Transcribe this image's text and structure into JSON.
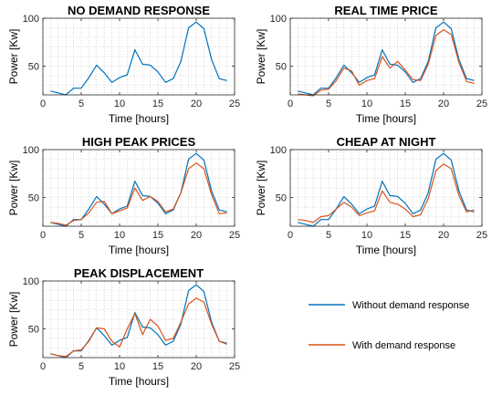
{
  "chart_data": [
    {
      "type": "line",
      "title": "NO DEMAND RESPONSE",
      "xlabel": "Time [hours]",
      "ylabel": "Power [Kw]",
      "xlim": [
        0,
        25
      ],
      "ylim": [
        20,
        100
      ],
      "xticks": [
        0,
        5,
        10,
        15,
        20,
        25
      ],
      "yticks": [
        50,
        100
      ],
      "grid": "dotted",
      "x": [
        1,
        2,
        3,
        4,
        5,
        6,
        7,
        8,
        9,
        10,
        11,
        12,
        13,
        14,
        15,
        16,
        17,
        18,
        19,
        20,
        21,
        22,
        23,
        24
      ],
      "series": [
        {
          "legend": "Without demand response",
          "values": [
            24,
            22,
            20,
            27,
            27,
            38,
            51,
            43,
            33,
            38,
            41,
            67,
            52,
            51,
            44,
            33,
            37,
            55,
            90,
            96,
            89,
            57,
            37,
            35
          ]
        }
      ]
    },
    {
      "type": "line",
      "title": "REAL TIME PRICE",
      "xlabel": "Time [hours]",
      "ylabel": "Power [Kw]",
      "xlim": [
        0,
        25
      ],
      "ylim": [
        20,
        100
      ],
      "xticks": [
        0,
        5,
        10,
        15,
        20,
        25
      ],
      "yticks": [
        50,
        100
      ],
      "grid": "dotted",
      "x": [
        1,
        2,
        3,
        4,
        5,
        6,
        7,
        8,
        9,
        10,
        11,
        12,
        13,
        14,
        15,
        16,
        17,
        18,
        19,
        20,
        21,
        22,
        23,
        24
      ],
      "series": [
        {
          "legend": "Without demand response",
          "values": [
            24,
            22,
            20,
            27,
            27,
            38,
            51,
            43,
            33,
            38,
            41,
            67,
            52,
            51,
            44,
            33,
            37,
            55,
            90,
            96,
            89,
            57,
            37,
            35
          ]
        },
        {
          "legend": "With demand response",
          "values": [
            21,
            20,
            19,
            25,
            26,
            35,
            48,
            45,
            30,
            35,
            37,
            60,
            48,
            55,
            46,
            36,
            35,
            52,
            82,
            88,
            83,
            54,
            34,
            32
          ]
        }
      ]
    },
    {
      "type": "line",
      "title": "HIGH PEAK PRICES",
      "xlabel": "Time [hours]",
      "ylabel": "Power [Kw]",
      "xlim": [
        0,
        25
      ],
      "ylim": [
        20,
        100
      ],
      "xticks": [
        0,
        5,
        10,
        15,
        20,
        25
      ],
      "yticks": [
        50,
        100
      ],
      "grid": "dotted",
      "x": [
        1,
        2,
        3,
        4,
        5,
        6,
        7,
        8,
        9,
        10,
        11,
        12,
        13,
        14,
        15,
        16,
        17,
        18,
        19,
        20,
        21,
        22,
        23,
        24
      ],
      "series": [
        {
          "legend": "Without demand response",
          "values": [
            24,
            22,
            20,
            27,
            27,
            38,
            51,
            43,
            33,
            38,
            41,
            67,
            52,
            51,
            44,
            33,
            37,
            55,
            90,
            96,
            89,
            57,
            37,
            35
          ]
        },
        {
          "legend": "With demand response",
          "values": [
            24,
            23,
            21,
            26,
            27,
            34,
            45,
            46,
            33,
            36,
            39,
            60,
            47,
            51,
            46,
            35,
            38,
            55,
            80,
            86,
            80,
            53,
            33,
            34
          ]
        }
      ]
    },
    {
      "type": "line",
      "title": "CHEAP AT NIGHT",
      "xlabel": "Time [hours]",
      "ylabel": "Power [Kw]",
      "xlim": [
        0,
        25
      ],
      "ylim": [
        20,
        100
      ],
      "xticks": [
        0,
        5,
        10,
        15,
        20,
        25
      ],
      "yticks": [
        50,
        100
      ],
      "grid": "dotted",
      "x": [
        1,
        2,
        3,
        4,
        5,
        6,
        7,
        8,
        9,
        10,
        11,
        12,
        13,
        14,
        15,
        16,
        17,
        18,
        19,
        20,
        21,
        22,
        23,
        24
      ],
      "series": [
        {
          "legend": "Without demand response",
          "values": [
            24,
            22,
            20,
            27,
            27,
            38,
            51,
            43,
            33,
            38,
            41,
            67,
            52,
            51,
            44,
            33,
            37,
            55,
            90,
            96,
            89,
            57,
            37,
            35
          ]
        },
        {
          "legend": "With demand response",
          "values": [
            27,
            26,
            24,
            30,
            31,
            38,
            45,
            40,
            31,
            34,
            36,
            57,
            45,
            43,
            38,
            30,
            32,
            49,
            78,
            85,
            80,
            52,
            35,
            37
          ]
        }
      ]
    },
    {
      "type": "line",
      "title": "PEAK DISPLACEMENT",
      "xlabel": "Time [hours]",
      "ylabel": "Power [Kw]",
      "xlim": [
        0,
        25
      ],
      "ylim": [
        20,
        100
      ],
      "xticks": [
        0,
        5,
        10,
        15,
        20,
        25
      ],
      "yticks": [
        50,
        100
      ],
      "grid": "dotted",
      "x": [
        1,
        2,
        3,
        4,
        5,
        6,
        7,
        8,
        9,
        10,
        11,
        12,
        13,
        14,
        15,
        16,
        17,
        18,
        19,
        20,
        21,
        22,
        23,
        24
      ],
      "series": [
        {
          "legend": "Without demand response",
          "values": [
            24,
            22,
            20,
            27,
            27,
            38,
            51,
            43,
            33,
            38,
            41,
            67,
            52,
            51,
            44,
            33,
            37,
            55,
            90,
            96,
            89,
            57,
            37,
            35
          ]
        },
        {
          "legend": "With demand response",
          "values": [
            24,
            22,
            21,
            27,
            28,
            37,
            51,
            50,
            37,
            31,
            50,
            66,
            44,
            60,
            53,
            38,
            40,
            57,
            76,
            82,
            78,
            55,
            37,
            34
          ]
        }
      ]
    }
  ],
  "legend": {
    "placement": "bottom-right",
    "items": [
      {
        "label": "Without demand response",
        "color": "#0072BD"
      },
      {
        "label": "With demand response",
        "color": "#D95319"
      }
    ]
  },
  "colors": {
    "without": "#0072BD",
    "with": "#D95319",
    "grid": "#bdbdbd",
    "axis": "#262626"
  }
}
